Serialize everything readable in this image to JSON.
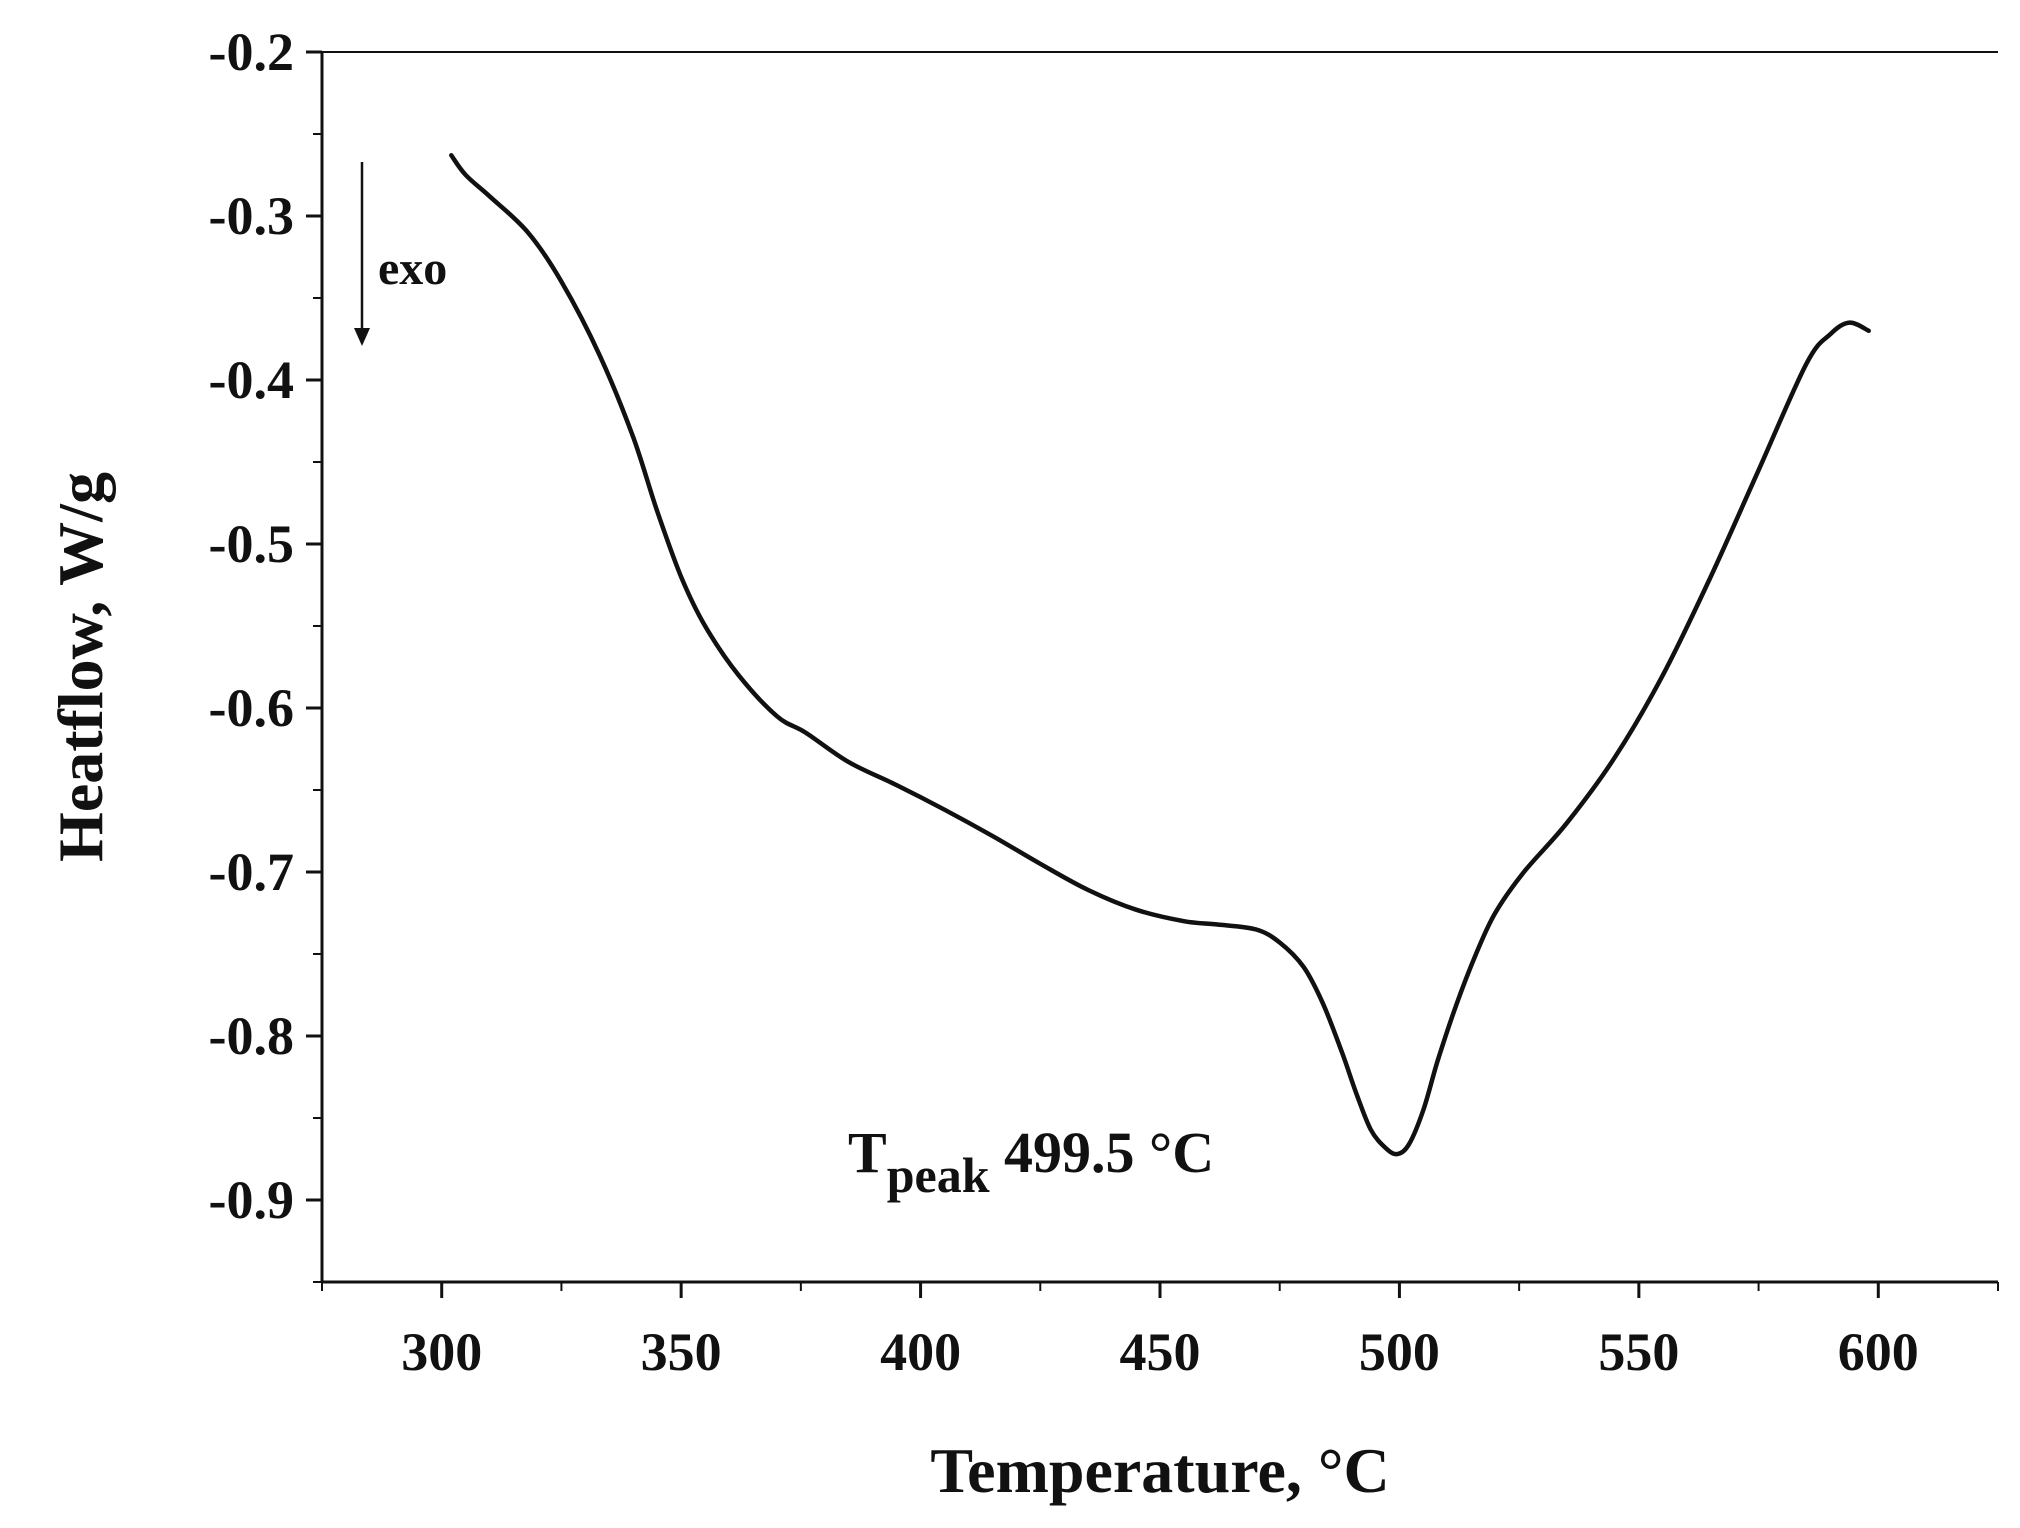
{
  "chart_data": {
    "type": "line",
    "title": "",
    "xlabel": "Temperature, °C",
    "ylabel": "Heatflow, W/g",
    "xlim": [
      275,
      625
    ],
    "ylim": [
      -0.95,
      -0.2
    ],
    "x_ticks": [
      300,
      350,
      400,
      450,
      500,
      550,
      600
    ],
    "x_tick_labels": [
      "300",
      "350",
      "400",
      "450",
      "500",
      "550",
      "600"
    ],
    "y_ticks": [
      -0.2,
      -0.3,
      -0.4,
      -0.5,
      -0.6,
      -0.7,
      -0.8,
      -0.9
    ],
    "y_tick_labels": [
      "-0.2",
      "-0.3",
      "-0.4",
      "-0.5",
      "-0.6",
      "-0.7",
      "-0.8",
      "-0.9"
    ],
    "grid": false,
    "line_color": "#111111",
    "series": [
      {
        "x": [
          302,
          305,
          310,
          318,
          325,
          333,
          340,
          345,
          350,
          355,
          362,
          370,
          376,
          385,
          395,
          405,
          415,
          425,
          435,
          445,
          455,
          462,
          470,
          475,
          480,
          484,
          488,
          491,
          494,
          497,
          499.5,
          502,
          505,
          508,
          512,
          516,
          520,
          526,
          535,
          545,
          555,
          565,
          575,
          585,
          590,
          594,
          598
        ],
        "y": [
          -0.263,
          -0.275,
          -0.288,
          -0.31,
          -0.34,
          -0.385,
          -0.435,
          -0.48,
          -0.52,
          -0.55,
          -0.58,
          -0.605,
          -0.615,
          -0.633,
          -0.647,
          -0.662,
          -0.678,
          -0.695,
          -0.711,
          -0.723,
          -0.73,
          -0.732,
          -0.735,
          -0.743,
          -0.758,
          -0.78,
          -0.81,
          -0.835,
          -0.857,
          -0.868,
          -0.872,
          -0.866,
          -0.845,
          -0.815,
          -0.78,
          -0.75,
          -0.725,
          -0.7,
          -0.67,
          -0.63,
          -0.58,
          -0.52,
          -0.455,
          -0.39,
          -0.372,
          -0.365,
          -0.37
        ]
      }
    ],
    "annotations": {
      "peak_main": "T",
      "peak_sub": "peak",
      "peak_value": " 499.5 °C",
      "exo_label": "exo"
    }
  }
}
